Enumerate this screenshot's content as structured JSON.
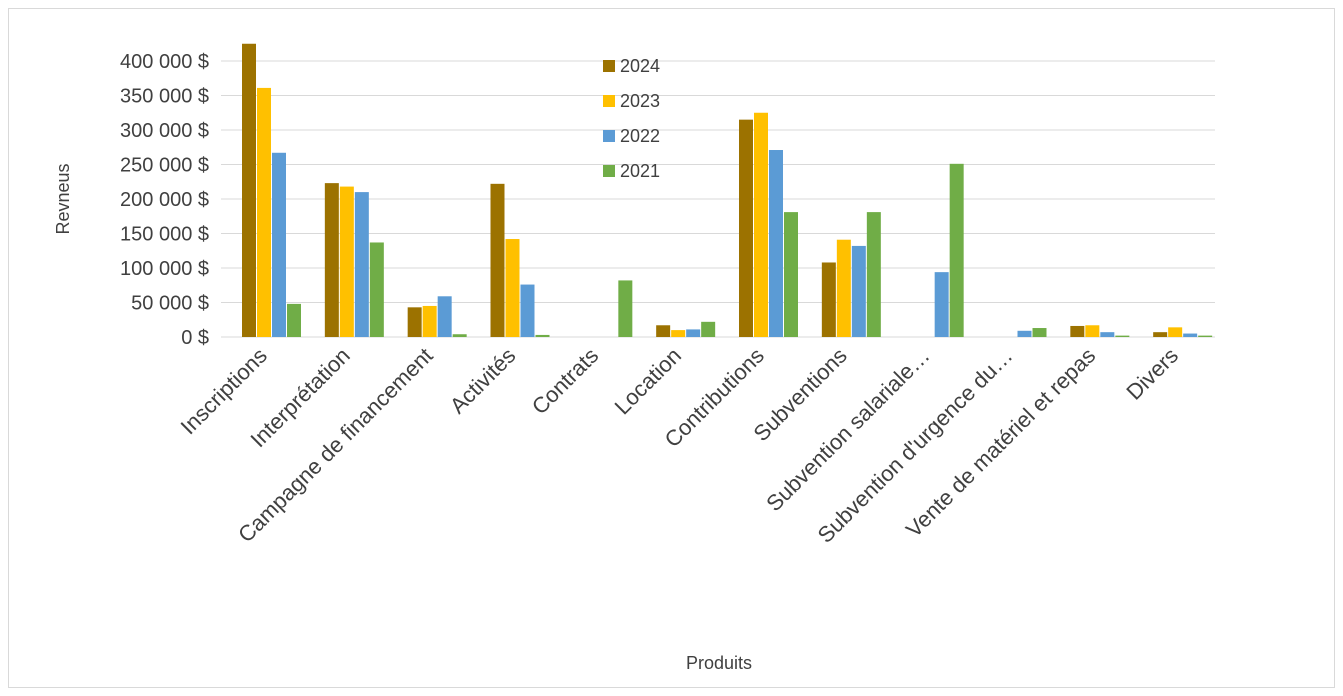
{
  "chart_data": {
    "type": "bar",
    "title": "",
    "xlabel": "Produits",
    "ylabel": "Revneus",
    "ylim": [
      0,
      430000
    ],
    "yticks": [
      0,
      50000,
      100000,
      150000,
      200000,
      250000,
      300000,
      350000,
      400000
    ],
    "ytick_labels": [
      "0 $",
      "50 000 $",
      "100 000 $",
      "150 000 $",
      "200 000 $",
      "250 000 $",
      "300 000 $",
      "350 000 $",
      "400 000 $"
    ],
    "grid": true,
    "legend_position": "top-center",
    "categories": [
      "Inscriptions",
      "Interprétation",
      "Campagne de financement",
      "Activités",
      "Contrats",
      "Location",
      "Contributions",
      "Subventions",
      "Subvention salariale…",
      "Subvention d'urgence du…",
      "Vente de matériel et repas",
      "Divers"
    ],
    "series": [
      {
        "name": "2024",
        "color": "#9c7200",
        "values": [
          425000,
          223000,
          43000,
          222000,
          0,
          17000,
          315000,
          108000,
          0,
          0,
          16000,
          7000
        ]
      },
      {
        "name": "2023",
        "color": "#ffc000",
        "values": [
          361000,
          218000,
          45000,
          142000,
          0,
          10000,
          325000,
          141000,
          0,
          0,
          17000,
          14000
        ]
      },
      {
        "name": "2022",
        "color": "#5b9bd5",
        "values": [
          267000,
          210000,
          59000,
          76000,
          0,
          11000,
          271000,
          132000,
          94000,
          9000,
          7000,
          5000
        ]
      },
      {
        "name": "2021",
        "color": "#70ad47",
        "values": [
          48000,
          137000,
          4000,
          3000,
          82000,
          22000,
          181000,
          181000,
          251000,
          13000,
          2000,
          2000
        ]
      }
    ]
  }
}
